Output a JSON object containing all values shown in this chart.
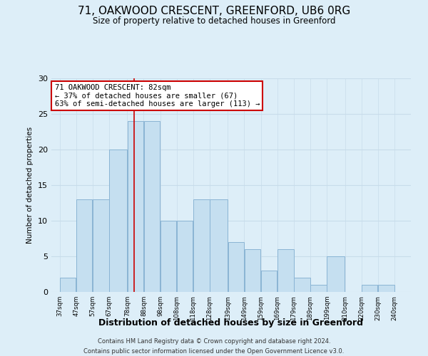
{
  "title": "71, OAKWOOD CRESCENT, GREENFORD, UB6 0RG",
  "subtitle": "Size of property relative to detached houses in Greenford",
  "xlabel": "Distribution of detached houses by size in Greenford",
  "ylabel": "Number of detached properties",
  "bar_left_edges": [
    37,
    47,
    57,
    67,
    78,
    88,
    98,
    108,
    118,
    128,
    139,
    149,
    159,
    169,
    179,
    189,
    199,
    210,
    220,
    230
  ],
  "bar_widths": [
    10,
    10,
    10,
    11,
    10,
    10,
    10,
    10,
    10,
    11,
    10,
    10,
    10,
    10,
    10,
    10,
    11,
    10,
    10,
    10
  ],
  "bar_heights": [
    2,
    13,
    13,
    20,
    24,
    24,
    10,
    10,
    13,
    13,
    7,
    6,
    3,
    6,
    2,
    1,
    5,
    0,
    1,
    1
  ],
  "bar_color": "#c5dff0",
  "bar_edge_color": "#8ab4d4",
  "reference_line_x": 82,
  "reference_line_color": "#cc0000",
  "annotation_text_line1": "71 OAKWOOD CRESCENT: 82sqm",
  "annotation_text_line2": "← 37% of detached houses are smaller (67)",
  "annotation_text_line3": "63% of semi-detached houses are larger (113) →",
  "annotation_box_facecolor": "#ffffff",
  "annotation_box_edgecolor": "#cc0000",
  "tick_labels": [
    "37sqm",
    "47sqm",
    "57sqm",
    "67sqm",
    "78sqm",
    "88sqm",
    "98sqm",
    "108sqm",
    "118sqm",
    "128sqm",
    "139sqm",
    "149sqm",
    "159sqm",
    "169sqm",
    "179sqm",
    "189sqm",
    "199sqm",
    "210sqm",
    "220sqm",
    "230sqm",
    "240sqm"
  ],
  "tick_positions": [
    37,
    47,
    57,
    67,
    78,
    88,
    98,
    108,
    118,
    128,
    139,
    149,
    159,
    169,
    179,
    189,
    199,
    210,
    220,
    230,
    240
  ],
  "xlim": [
    32,
    250
  ],
  "ylim": [
    0,
    30
  ],
  "yticks": [
    0,
    5,
    10,
    15,
    20,
    25,
    30
  ],
  "grid_color": "#c8dcea",
  "background_color": "#ddeef8",
  "plot_bg_color": "#ddeef8",
  "footer_line1": "Contains HM Land Registry data © Crown copyright and database right 2024.",
  "footer_line2": "Contains public sector information licensed under the Open Government Licence v3.0."
}
